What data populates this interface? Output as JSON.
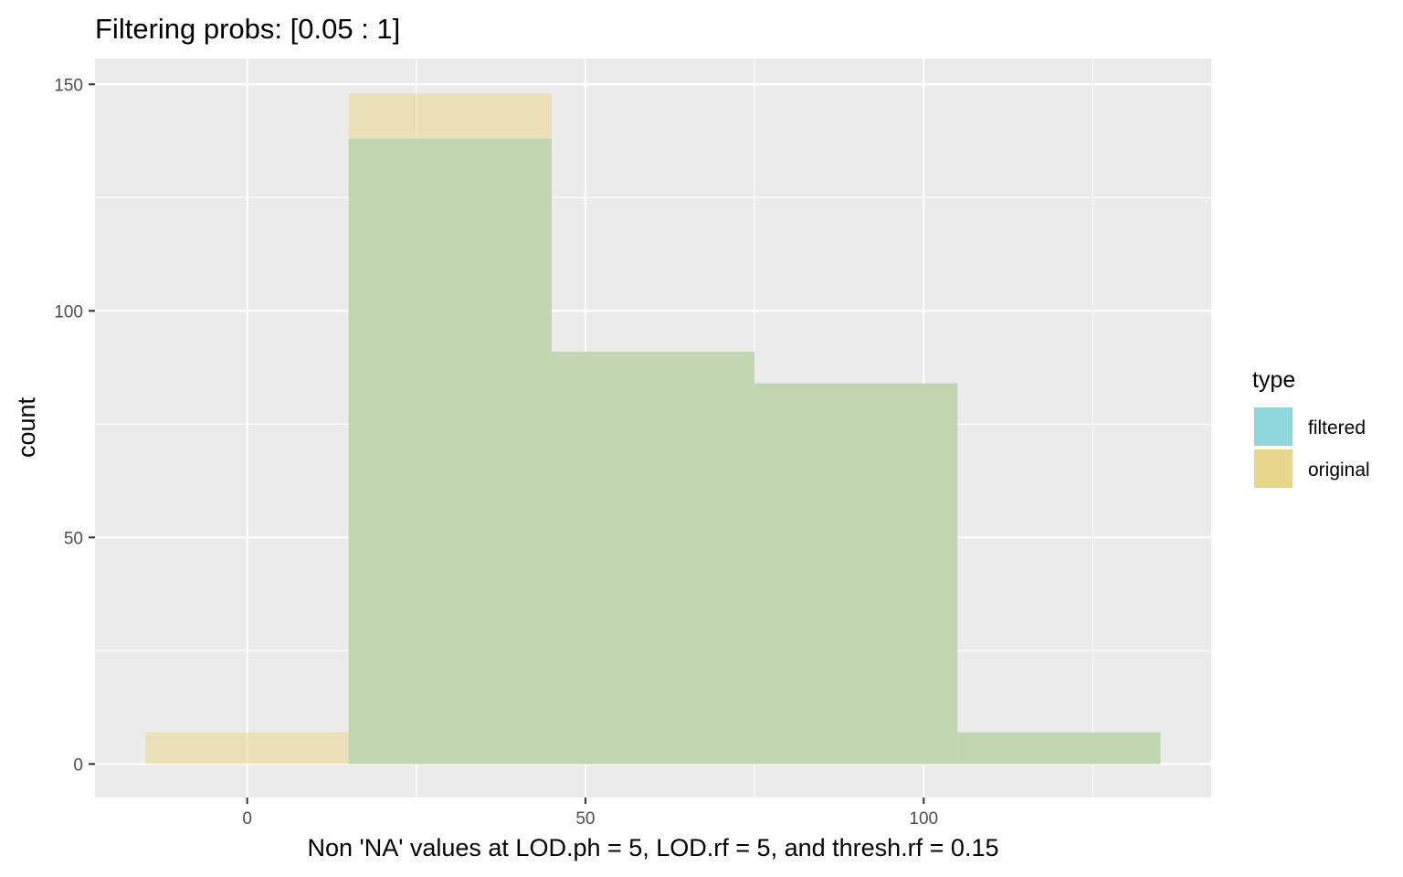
{
  "chart_data": {
    "type": "bar",
    "subtype": "histogram",
    "title": "Filtering probs: [0.05 : 1]",
    "xlabel": "Non 'NA' values at LOD.ph = 5, LOD.rf = 5, and thresh.rf = 0.15",
    "ylabel": "count",
    "xlim": [
      -22.5,
      142.5
    ],
    "ylim": [
      -7.4,
      155.7
    ],
    "x_ticks": [
      0,
      50,
      100
    ],
    "x_tick_labels": [
      "0",
      "50",
      "100"
    ],
    "y_ticks": [
      0,
      50,
      100,
      150
    ],
    "y_tick_labels": [
      "0",
      "50",
      "100",
      "150"
    ],
    "x_minor_grid": [
      25,
      75,
      125
    ],
    "y_minor_grid": [
      25,
      75,
      125
    ],
    "grid": true,
    "bin_width": 30,
    "bins": [
      {
        "x0": -15,
        "x1": 15
      },
      {
        "x0": 15,
        "x1": 45
      },
      {
        "x0": 45,
        "x1": 75
      },
      {
        "x0": 75,
        "x1": 105
      },
      {
        "x0": 105,
        "x1": 135
      }
    ],
    "series": [
      {
        "name": "filtered",
        "color": "#8fd7dd",
        "values": [
          0,
          138,
          91,
          84,
          7
        ]
      },
      {
        "name": "original",
        "color": "#e9d68d",
        "values": [
          7,
          148,
          91,
          84,
          7
        ]
      }
    ],
    "overlap_color": "#b2c986",
    "legend": {
      "title": "type",
      "position": "right"
    }
  }
}
